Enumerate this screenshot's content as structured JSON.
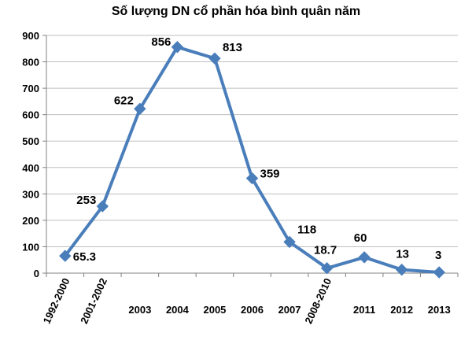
{
  "chart_data": {
    "type": "line",
    "title": "Số lượng DN cổ phần hóa bình quân năm",
    "xlabel": "",
    "ylabel": "",
    "categories": [
      "1992-2000",
      "2001-2002",
      "2003",
      "2004",
      "2005",
      "2006",
      "2007",
      "2008-2010",
      "2011",
      "2012",
      "2013"
    ],
    "series": [
      {
        "values": [
          65.3,
          253,
          622,
          856,
          813,
          359,
          118,
          18.7,
          60,
          13,
          3
        ],
        "labels": [
          "65.3",
          "253",
          "622",
          "856",
          "813",
          "359",
          "118",
          "18.7",
          "60",
          "13",
          "3"
        ]
      }
    ],
    "ylim": [
      0,
      900
    ],
    "yticks": [
      0,
      100,
      200,
      300,
      400,
      500,
      600,
      700,
      800,
      900
    ],
    "ytick_labels": [
      "0",
      "100",
      "200",
      "300",
      "400",
      "500",
      "600",
      "700",
      "800",
      "900"
    ],
    "grid": true,
    "legend": "none",
    "colors": {
      "line": "#4a7ebb",
      "grid": "#bfbfbf",
      "axis": "#808080"
    }
  }
}
